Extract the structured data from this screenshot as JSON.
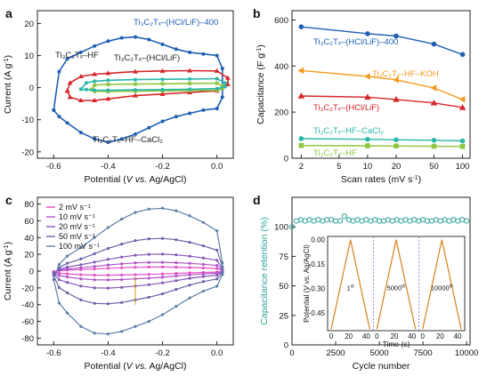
{
  "panel_labels": {
    "a": "a",
    "b": "b",
    "c": "c",
    "d": "d"
  },
  "chart_data": [
    {
      "panel": "a",
      "type": "line",
      "xlabel": {
        "pre": "Potential (",
        "it": "V vs.",
        "post": " Ag/AgCl)"
      },
      "ylabel": {
        "pre": "Current (A g",
        "sup": "-1",
        "post": ")"
      },
      "xlim": [
        -0.66,
        0.06
      ],
      "ylim": [
        -22,
        24
      ],
      "xticks": [
        "-0.6",
        "-0.4",
        "-0.2",
        "0.0"
      ],
      "xtick_values": [
        -0.6,
        -0.4,
        -0.2,
        0.0
      ],
      "yticks": [
        "-20",
        "-10",
        "0",
        "10",
        "20"
      ],
      "ytick_values": [
        -20,
        -10,
        0,
        10,
        20
      ],
      "series": [
        {
          "name": "Ti3C2Tx-(HCl/LiF)-400",
          "label": "Ti₃C₂Tₓ–(HCl/LiF)–400",
          "color": "#1f5fb4",
          "marker": "circle",
          "upper": [
            [
              -0.6,
              -7
            ],
            [
              -0.58,
              5
            ],
            [
              -0.55,
              9
            ],
            [
              -0.5,
              11
            ],
            [
              -0.45,
              13
            ],
            [
              -0.4,
              14.5
            ],
            [
              -0.35,
              15.5
            ],
            [
              -0.3,
              15.8
            ],
            [
              -0.25,
              15
            ],
            [
              -0.2,
              13.5
            ],
            [
              -0.15,
              12
            ],
            [
              -0.1,
              11
            ],
            [
              -0.05,
              10.5
            ],
            [
              0,
              10
            ],
            [
              0.02,
              6
            ]
          ],
          "lower": [
            [
              0.02,
              -3
            ],
            [
              0,
              -6.5
            ],
            [
              -0.05,
              -7
            ],
            [
              -0.1,
              -8
            ],
            [
              -0.15,
              -9
            ],
            [
              -0.2,
              -10.5
            ],
            [
              -0.25,
              -12.5
            ],
            [
              -0.3,
              -14.5
            ],
            [
              -0.35,
              -16
            ],
            [
              -0.4,
              -17
            ],
            [
              -0.45,
              -16
            ],
            [
              -0.5,
              -14
            ],
            [
              -0.55,
              -11
            ],
            [
              -0.58,
              -9
            ],
            [
              -0.6,
              -7
            ]
          ]
        },
        {
          "name": "Ti3C2Tx-(HCl/LiF)",
          "label": "Ti₃C₂Tₓ–(HCl/LiF)",
          "color": "#d6262a",
          "marker": "triangle",
          "upper": [
            [
              -0.55,
              -1
            ],
            [
              -0.54,
              1.5
            ],
            [
              -0.5,
              3.5
            ],
            [
              -0.45,
              4.2
            ],
            [
              -0.4,
              4.5
            ],
            [
              -0.3,
              5
            ],
            [
              -0.2,
              5.2
            ],
            [
              -0.1,
              5.3
            ],
            [
              0,
              5.2
            ],
            [
              0.04,
              3
            ]
          ],
          "lower": [
            [
              0.04,
              1
            ],
            [
              0,
              -1
            ],
            [
              -0.1,
              -1.5
            ],
            [
              -0.2,
              -2
            ],
            [
              -0.3,
              -2.5
            ],
            [
              -0.4,
              -3.5
            ],
            [
              -0.45,
              -4
            ],
            [
              -0.5,
              -4
            ],
            [
              -0.54,
              -3
            ],
            [
              -0.55,
              -1
            ]
          ]
        },
        {
          "name": "Ti3C2Tx-HF",
          "label": "Ti₃C₂Tₓ–HF",
          "color": "#8dc63f",
          "marker": "square",
          "upper": [
            [
              -0.46,
              -0.6
            ],
            [
              -0.45,
              0.8
            ],
            [
              -0.4,
              1
            ],
            [
              -0.3,
              1.1
            ],
            [
              -0.2,
              1.2
            ],
            [
              -0.1,
              1.3
            ],
            [
              0,
              1.4
            ],
            [
              0.02,
              0.5
            ]
          ],
          "lower": [
            [
              0.02,
              -0.3
            ],
            [
              0,
              -0.8
            ],
            [
              -0.1,
              -0.9
            ],
            [
              -0.2,
              -1
            ],
            [
              -0.3,
              -1.1
            ],
            [
              -0.4,
              -1.2
            ],
            [
              -0.45,
              -1.1
            ],
            [
              -0.46,
              -0.6
            ]
          ]
        },
        {
          "name": "Ti3C2Tx-HF-CaCl2",
          "label": "Ti₃C₂Tₓ–HF–CaCl₂",
          "color": "#2ab7a9",
          "marker": "circle",
          "upper": [
            [
              -0.5,
              -0.5
            ],
            [
              -0.48,
              1.5
            ],
            [
              -0.45,
              2
            ],
            [
              -0.4,
              2.3
            ],
            [
              -0.3,
              2.5
            ],
            [
              -0.2,
              2.6
            ],
            [
              -0.1,
              2.7
            ],
            [
              0,
              2.8
            ],
            [
              0.03,
              1.5
            ]
          ],
          "lower": [
            [
              0.03,
              0.3
            ],
            [
              0,
              -0.3
            ],
            [
              -0.1,
              -0.5
            ],
            [
              -0.2,
              -0.6
            ],
            [
              -0.3,
              -0.7
            ],
            [
              -0.4,
              -0.8
            ],
            [
              -0.45,
              -0.8
            ],
            [
              -0.48,
              -0.6
            ],
            [
              -0.5,
              -0.5
            ]
          ]
        }
      ]
    },
    {
      "panel": "b",
      "type": "line",
      "xlabel": {
        "pre": "Scan rates (mV s",
        "sup": "-1",
        "post": ")"
      },
      "ylabel": {
        "pre": "Capacitance (F g",
        "sup": "-1",
        "post": ")"
      },
      "x_scale": "log",
      "xlim": [
        1.6,
        120
      ],
      "ylim": [
        0,
        640
      ],
      "xticks": [
        "2",
        "5",
        "10",
        "20",
        "50",
        "100"
      ],
      "xtick_values": [
        2,
        5,
        10,
        20,
        50,
        100
      ],
      "yticks": [
        "0",
        "200",
        "400",
        "600"
      ],
      "ytick_values": [
        0,
        200,
        400,
        600
      ],
      "x": [
        2,
        10,
        20,
        50,
        100
      ],
      "series": [
        {
          "name": "Ti3C2Tx-(HCl/LiF)-400",
          "label": "Ti₃C₂Tₓ–(HCl/LiF)–400",
          "color": "#1f5fb4",
          "marker": "circle",
          "values": [
            570,
            540,
            530,
            495,
            450
          ]
        },
        {
          "name": "Ti3C2Tx-HF-KOH",
          "label": "Ti₃C₂Tₓ–HF–KOH",
          "color": "#f29b1e",
          "marker": "triangle-left",
          "values": [
            380,
            355,
            340,
            305,
            255
          ]
        },
        {
          "name": "Ti3C2Tx-(HCl/LiF)",
          "label": "Ti₃C₂Tₓ–(HCl/LiF)",
          "color": "#d6262a",
          "marker": "triangle",
          "values": [
            270,
            265,
            255,
            240,
            220
          ]
        },
        {
          "name": "Ti3C2Tx-HF-CaCl2",
          "label": "Ti₃C₂Tₓ–HF–CaCl₂",
          "color": "#2ab7a9",
          "marker": "circle",
          "values": [
            85,
            82,
            80,
            78,
            75
          ]
        },
        {
          "name": "Ti3C2Tx-HF",
          "label": "Ti₃C₂Tₓ–HF",
          "color": "#8dc63f",
          "marker": "square",
          "values": [
            55,
            54,
            53,
            52,
            51
          ]
        }
      ]
    },
    {
      "panel": "c",
      "type": "line",
      "xlabel": {
        "pre": "Potential (",
        "it": "V vs.",
        "post": " Ag/AgCl)"
      },
      "ylabel": {
        "pre": "Current (A g",
        "sup": "-1",
        "post": ")"
      },
      "xlim": [
        -0.66,
        0.06
      ],
      "ylim": [
        -88,
        88
      ],
      "xticks": [
        "-0.6",
        "-0.4",
        "-0.2",
        "0.0"
      ],
      "xtick_values": [
        -0.6,
        -0.4,
        -0.2,
        0.0
      ],
      "yticks": [
        "-80",
        "-60",
        "-40",
        "-20",
        "0",
        "20",
        "40",
        "60",
        "80"
      ],
      "ytick_values": [
        -80,
        -60,
        -40,
        -20,
        0,
        20,
        40,
        60,
        80
      ],
      "legend": "top-left",
      "series": [
        {
          "name": "2 mV s-1",
          "label": "2 mV s⁻¹",
          "color": "#e24fc4",
          "scale": 0.065
        },
        {
          "name": "10 mV s-1",
          "label": "10 mV s⁻¹",
          "color": "#b054c9",
          "scale": 0.14
        },
        {
          "name": "20 mV s-1",
          "label": "20 mV s⁻¹",
          "color": "#8458b8",
          "scale": 0.27
        },
        {
          "name": "50 mV s-1",
          "label": "50 mV s⁻¹",
          "color": "#6a62a8",
          "scale": 0.52
        },
        {
          "name": "100 mV s-1",
          "label": "100 mV s⁻¹",
          "color": "#5c7fa6",
          "scale": 1.0
        }
      ],
      "base_upper": [
        [
          -0.6,
          -10
        ],
        [
          -0.58,
          8
        ],
        [
          -0.55,
          18
        ],
        [
          -0.5,
          28
        ],
        [
          -0.45,
          40
        ],
        [
          -0.4,
          52
        ],
        [
          -0.35,
          62
        ],
        [
          -0.3,
          70
        ],
        [
          -0.25,
          74
        ],
        [
          -0.2,
          75
        ],
        [
          -0.15,
          72
        ],
        [
          -0.1,
          66
        ],
        [
          -0.05,
          58
        ],
        [
          0,
          48
        ],
        [
          0.02,
          10
        ]
      ],
      "base_lower": [
        [
          0.02,
          -4
        ],
        [
          0,
          -18
        ],
        [
          -0.05,
          -24
        ],
        [
          -0.1,
          -32
        ],
        [
          -0.15,
          -42
        ],
        [
          -0.2,
          -52
        ],
        [
          -0.25,
          -60
        ],
        [
          -0.3,
          -66
        ],
        [
          -0.35,
          -72
        ],
        [
          -0.4,
          -75
        ],
        [
          -0.45,
          -74
        ],
        [
          -0.5,
          -66
        ],
        [
          -0.55,
          -50
        ],
        [
          -0.58,
          -38
        ],
        [
          -0.6,
          -10
        ]
      ]
    },
    {
      "panel": "d",
      "type": "scatter",
      "xlabel": {
        "pre": "Cycle number",
        "sup": "",
        "post": ""
      },
      "ylabel": {
        "pre": "Capacitance retention (%)",
        "sup": "",
        "post": ""
      },
      "xlim": [
        0,
        10200
      ],
      "ylim": [
        0,
        125
      ],
      "xticks": [
        "0",
        "2500",
        "5000",
        "7500",
        "10000"
      ],
      "xtick_values": [
        0,
        2500,
        5000,
        7500,
        10000
      ],
      "yticks": [
        "0",
        "25",
        "50",
        "75",
        "100"
      ],
      "ytick_values": [
        0,
        25,
        50,
        75,
        100
      ],
      "series": [
        {
          "name": "retention",
          "color": "#2ea596",
          "x": [
            0,
            250,
            500,
            750,
            1000,
            1250,
            1500,
            1750,
            2000,
            2250,
            2500,
            2750,
            3000,
            3250,
            3500,
            3750,
            4000,
            4250,
            4500,
            4750,
            5000,
            5250,
            5500,
            5750,
            6000,
            6250,
            6500,
            6750,
            7000,
            7250,
            7500,
            7750,
            8000,
            8250,
            8500,
            8750,
            9000,
            9250,
            9500,
            9750,
            10000
          ],
          "values": [
            100,
            105,
            106,
            105,
            106,
            105,
            106,
            105,
            106,
            106,
            105,
            105,
            109,
            106,
            105,
            106,
            105,
            106,
            105,
            106,
            105,
            105,
            106,
            105,
            106,
            105,
            106,
            105,
            106,
            105,
            106,
            105,
            105,
            106,
            105,
            106,
            105,
            106,
            105,
            106,
            105
          ]
        }
      ],
      "inset": {
        "xlabel": "Time (s)",
        "ylabel": {
          "pre": "Potential (",
          "it": "V vs.",
          "post": " Ag/AgCl)"
        },
        "xticks": [
          "0",
          "20",
          "40",
          "0",
          "20",
          "40",
          "0",
          "20",
          "40"
        ],
        "yticks": [
          "0.00",
          "-0.15",
          "-0.30",
          "-0.45"
        ],
        "ytick_values": [
          0,
          -0.15,
          -0.3,
          -0.45
        ],
        "ylim": [
          -0.56,
          0.02
        ],
        "color": "#d98a2b",
        "segment_labels": [
          {
            "num": "1",
            "sup": "st"
          },
          {
            "num": "5000",
            "sup": "th"
          },
          {
            "num": "10000",
            "sup": "th"
          }
        ],
        "profile": [
          [
            0,
            -0.55
          ],
          [
            22,
            0.0
          ],
          [
            44,
            -0.55
          ]
        ]
      }
    }
  ]
}
